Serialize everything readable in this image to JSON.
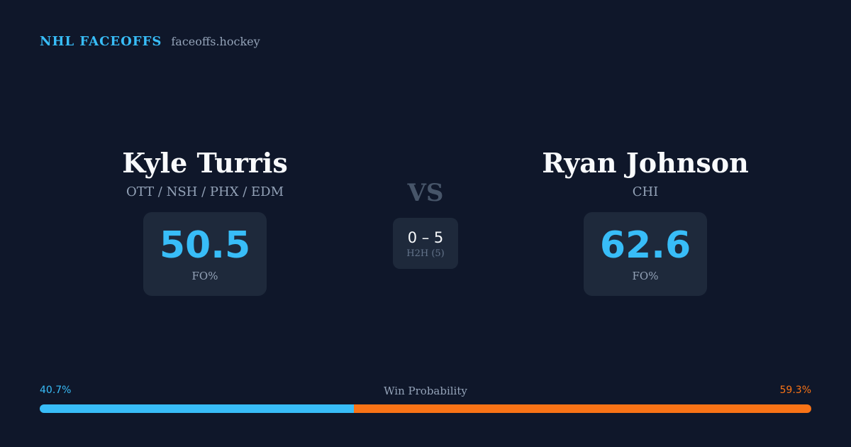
{
  "header": {
    "title": "NHL FACEOFFS",
    "url": "faceoffs.hockey"
  },
  "player_left": {
    "name": "Kyle Turris",
    "teams": "OTT / NSH / PHX / EDM",
    "fo_pct": "50.5",
    "fo_label": "FO%"
  },
  "player_right": {
    "name": "Ryan Johnson",
    "teams": "CHI",
    "fo_pct": "62.6",
    "fo_label": "FO%"
  },
  "matchup": {
    "vs": "VS",
    "h2h_score": "0 – 5",
    "h2h_label": "H2H (5)"
  },
  "win_probability": {
    "title": "Win Probability",
    "left_label": "40.7%",
    "right_label": "59.3%",
    "left_fraction": 0.407,
    "right_fraction": 0.593
  },
  "colors": {
    "background": "#0f172a",
    "card": "#1e293b",
    "accent_blue": "#38bdf8",
    "accent_orange": "#f97316",
    "muted": "#94a3b8",
    "vs": "#475569"
  }
}
